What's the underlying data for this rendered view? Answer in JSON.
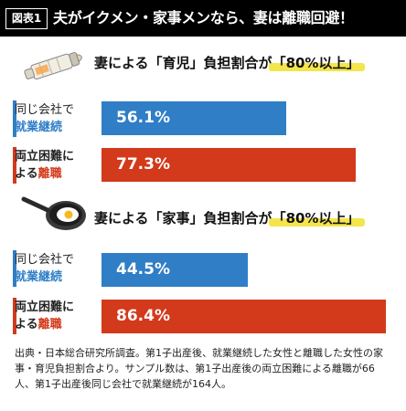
{
  "header": {
    "fig_label": "図表1",
    "title": "夫がイクメン・家事メンなら、妻は離職回避！"
  },
  "colors": {
    "blue": "#2f7ec6",
    "red": "#d23a1b",
    "highlight": "#f4e54c"
  },
  "chart_data": [
    {
      "type": "bar",
      "title_prefix": "妻による「育児」負担割合が",
      "title_highlight": "「80%以上」",
      "icon": "baby-bottle-icon",
      "xlim": [
        0,
        100
      ],
      "categories": [
        {
          "line1": "同じ会社で",
          "line2": "就業継続",
          "value": 56.1,
          "label": "56.1%",
          "color": "#2f7ec6"
        },
        {
          "line1": "両立困難に",
          "line2a": "よる",
          "line2b": "離職",
          "value": 77.3,
          "label": "77.3%",
          "color": "#d23a1b"
        }
      ]
    },
    {
      "type": "bar",
      "title_prefix": "妻による「家事」負担割合が",
      "title_highlight": "「80%以上」",
      "icon": "frying-pan-icon",
      "xlim": [
        0,
        100
      ],
      "categories": [
        {
          "line1": "同じ会社で",
          "line2": "就業継続",
          "value": 44.5,
          "label": "44.5%",
          "color": "#2f7ec6"
        },
        {
          "line1": "両立困難に",
          "line2a": "よる",
          "line2b": "離職",
          "value": 86.4,
          "label": "86.4%",
          "color": "#d23a1b"
        }
      ]
    }
  ],
  "note": "出典・日本総合研究所調査。第1子出産後、就業継続した女性と離職した女性の家事・育児負担割合より。サンプル数は、第1子出産後の両立困難による離職が66人、第1子出産後同じ会社で就業継続が164人。"
}
